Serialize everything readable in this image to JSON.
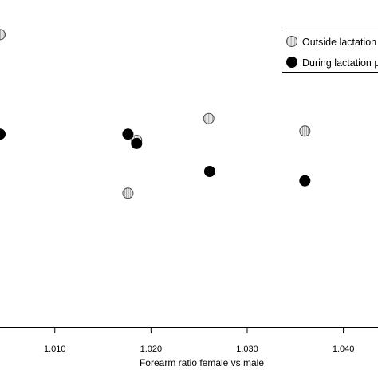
{
  "chart_data": {
    "type": "scatter",
    "xlabel": "Forearm ratio female vs male",
    "ylabel": "",
    "title": "",
    "xlim": [
      1.0043,
      1.0436
    ],
    "ylim": [
      0,
      1
    ],
    "xticks": [
      1.01,
      1.02,
      1.03,
      1.04
    ],
    "xtick_labels": [
      "1.010",
      "1.020",
      "1.030",
      "1.040"
    ],
    "grid": false,
    "legend_position": "top-right",
    "series": [
      {
        "name": "Outside lactation p",
        "marker": "hatched-circle",
        "color": "#c8c8c8",
        "points": [
          {
            "x": 1.0043,
            "y": 0.94
          },
          {
            "x": 1.0185,
            "y": 0.6
          },
          {
            "x": 1.026,
            "y": 0.67
          },
          {
            "x": 1.036,
            "y": 0.63
          },
          {
            "x": 1.0176,
            "y": 0.43
          }
        ]
      },
      {
        "name": "During lactation pe",
        "marker": "filled-circle",
        "color": "#000000",
        "points": [
          {
            "x": 1.0043,
            "y": 0.62
          },
          {
            "x": 1.0176,
            "y": 0.62
          },
          {
            "x": 1.0185,
            "y": 0.59
          },
          {
            "x": 1.0261,
            "y": 0.5
          },
          {
            "x": 1.036,
            "y": 0.47
          }
        ]
      }
    ]
  }
}
